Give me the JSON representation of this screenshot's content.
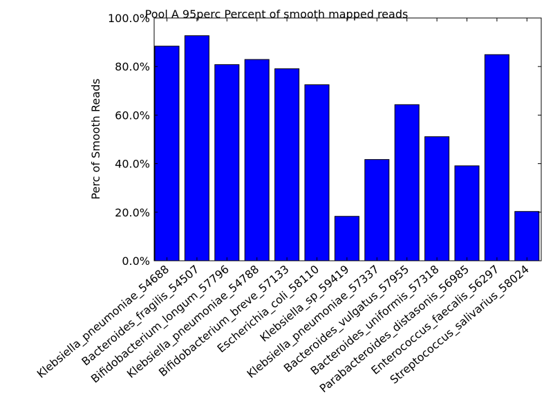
{
  "chart_data": {
    "type": "bar",
    "title": "Pool A 95perc Percent of smooth mapped reads",
    "xlabel": "",
    "ylabel": "Perc of Smooth Reads",
    "ylim": [
      0,
      100
    ],
    "yticks": [
      0,
      20,
      40,
      60,
      80,
      100
    ],
    "ytick_labels": [
      "0.0%",
      "20.0%",
      "40.0%",
      "60.0%",
      "80.0%",
      "100.0%"
    ],
    "categories": [
      "Klebsiella_pneumoniae_54688",
      "Bacteroides_fragilis_54507",
      "Bifidobacterium_longum_57796",
      "Klebsiella_pneumoniae_54788",
      "Bifidobacterium_breve_57133",
      "Escherichia_coli_58110",
      "Klebsiella_sp_59419",
      "Klebsiella_pneumoniae_57337",
      "Bacteroides_vulgatus_57955",
      "Bacteroides_uniformis_57318",
      "Parabacteroides_distasonis_56985",
      "Enterococcus_faecalis_56297",
      "Streptococcus_salivarius_58024"
    ],
    "values": [
      88.4,
      92.7,
      80.8,
      82.9,
      79.1,
      72.5,
      18.3,
      41.7,
      64.3,
      51.1,
      39.1,
      84.9,
      20.3
    ],
    "bar_color": "#0000ff",
    "edge_color": "#000000",
    "grid": false,
    "legend": "none"
  }
}
